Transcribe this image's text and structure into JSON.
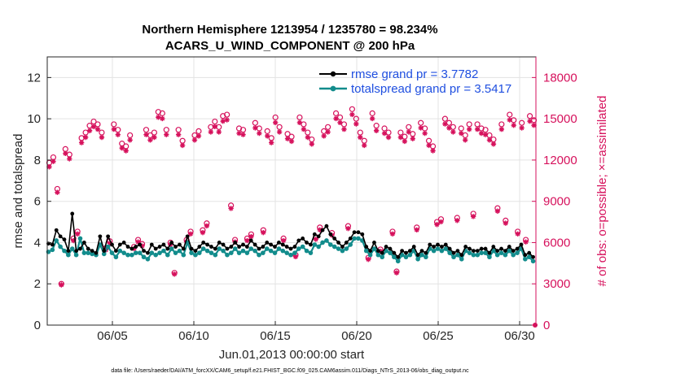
{
  "chart_data": {
    "type": "line",
    "title_line1": "Northern Hemisphere 1213954 / 1235780 = 98.234%",
    "title_line2": "ACARS_U_WIND_COMPONENT @ 200 hPa",
    "xlabel": "Jun.01,2013 00:00:00 start",
    "ylabel_left": "rmse and totalspread",
    "ylabel_right": "# of obs: o=possible; ×=assimilated",
    "footer": "data file: /Users/raeder/DAI/ATM_forcXX/CAM6_setup/f.e21.FHIST_BGC.f09_025.CAM6assim.011/Diags_NTrS_2013-06/obs_diag_output.nc",
    "x_range_days": [
      1,
      31
    ],
    "ylim_left": [
      0,
      13
    ],
    "ylim_right": [
      0,
      19500
    ],
    "x_ticks": [
      {
        "day": 5,
        "label": "06/05"
      },
      {
        "day": 10,
        "label": "06/10"
      },
      {
        "day": 15,
        "label": "06/15"
      },
      {
        "day": 20,
        "label": "06/20"
      },
      {
        "day": 25,
        "label": "06/25"
      },
      {
        "day": 30,
        "label": "06/30"
      }
    ],
    "y_ticks_left": [
      {
        "value": 0,
        "label": "0"
      },
      {
        "value": 2,
        "label": "2"
      },
      {
        "value": 4,
        "label": "4"
      },
      {
        "value": 6,
        "label": "6"
      },
      {
        "value": 8,
        "label": "8"
      },
      {
        "value": 10,
        "label": "10"
      },
      {
        "value": 12,
        "label": "12"
      }
    ],
    "y_ticks_right": [
      {
        "value": 0,
        "label": "0"
      },
      {
        "value": 3000,
        "label": "3000"
      },
      {
        "value": 6000,
        "label": "6000"
      },
      {
        "value": 9000,
        "label": "9000"
      },
      {
        "value": 12000,
        "label": "12000"
      },
      {
        "value": 15000,
        "label": "15000"
      },
      {
        "value": 18000,
        "label": "18000"
      }
    ],
    "colors": {
      "rmse": "#000000",
      "spread": "#128c8c",
      "obs": "#d6115c",
      "grid": "#e3e3e3",
      "legend_text": "#1f4fe0"
    },
    "series": [
      {
        "name": "rmse",
        "legend": "rmse grand pr = 3.7782",
        "values": [
          3.95,
          3.9,
          4.6,
          4.3,
          4.15,
          3.6,
          5.4,
          3.6,
          3.7,
          4.0,
          3.7,
          3.6,
          3.5,
          4.3,
          3.6,
          4.3,
          3.9,
          3.6,
          3.9,
          4.0,
          3.8,
          3.7,
          3.8,
          3.9,
          3.6,
          3.5,
          3.9,
          3.7,
          3.8,
          3.9,
          3.7,
          4.0,
          3.8,
          3.9,
          3.7,
          4.3,
          3.7,
          3.6,
          3.8,
          4.0,
          3.9,
          3.8,
          3.7,
          4.0,
          3.9,
          3.7,
          3.8,
          4.0,
          3.8,
          3.9,
          3.8,
          4.1,
          3.9,
          3.7,
          3.8,
          4.0,
          3.9,
          3.8,
          4.0,
          3.9,
          3.8,
          3.7,
          3.8,
          4.1,
          4.2,
          4.0,
          3.9,
          4.4,
          4.3,
          4.6,
          4.8,
          4.4,
          4.2,
          4.0,
          3.8,
          4.0,
          4.2,
          4.5,
          4.5,
          4.4,
          3.8,
          3.6,
          4.0,
          3.6,
          3.5,
          3.8,
          3.7,
          3.5,
          3.3,
          3.6,
          3.5,
          3.6,
          3.8,
          3.4,
          3.6,
          3.5,
          3.9,
          3.8,
          3.9,
          3.8,
          3.9,
          3.7,
          3.5,
          3.6,
          3.4,
          3.8,
          3.7,
          3.6,
          3.6,
          3.7,
          3.7,
          3.5,
          3.8,
          3.6,
          3.7,
          3.6,
          3.8,
          3.6,
          3.7,
          3.9,
          3.4,
          3.5,
          3.3
        ]
      },
      {
        "name": "totalspread",
        "legend": "totalspread grand pr = 3.5417",
        "values": [
          3.55,
          3.65,
          4.1,
          3.8,
          3.6,
          3.4,
          3.7,
          3.4,
          4.2,
          3.5,
          3.5,
          3.45,
          3.4,
          3.9,
          3.45,
          3.8,
          3.5,
          3.3,
          3.6,
          3.5,
          3.4,
          3.4,
          3.5,
          3.5,
          3.3,
          3.2,
          3.5,
          3.4,
          3.5,
          3.6,
          3.4,
          3.7,
          3.5,
          3.6,
          3.4,
          4.0,
          3.5,
          3.4,
          3.5,
          3.7,
          3.6,
          3.5,
          3.4,
          3.7,
          3.6,
          3.4,
          3.5,
          3.7,
          3.5,
          3.6,
          3.5,
          3.7,
          3.6,
          3.4,
          3.5,
          3.7,
          3.6,
          3.5,
          3.7,
          3.6,
          3.5,
          3.4,
          3.5,
          3.7,
          3.8,
          3.6,
          3.5,
          3.9,
          3.8,
          4.0,
          4.1,
          3.9,
          3.8,
          3.7,
          3.6,
          3.7,
          3.9,
          4.2,
          4.2,
          4.1,
          3.6,
          3.4,
          3.7,
          3.4,
          3.3,
          3.6,
          3.5,
          3.3,
          3.1,
          3.4,
          3.3,
          3.4,
          3.6,
          3.2,
          3.4,
          3.3,
          3.7,
          3.6,
          3.7,
          3.6,
          3.7,
          3.5,
          3.3,
          3.4,
          3.2,
          3.6,
          3.5,
          3.4,
          3.4,
          3.5,
          3.5,
          3.3,
          3.6,
          3.4,
          3.5,
          3.4,
          3.6,
          3.4,
          3.5,
          3.7,
          3.2,
          3.3,
          3.1
        ]
      }
    ],
    "obs_possible": [
      11800,
      12200,
      9900,
      3000,
      12800,
      12400,
      6300,
      6800,
      13600,
      14000,
      14500,
      14800,
      14600,
      14000,
      5600,
      6100,
      14600,
      14200,
      13200,
      13000,
      13800,
      5700,
      6200,
      5900,
      14200,
      13800,
      14000,
      15500,
      15400,
      14200,
      6000,
      3800,
      14200,
      13400,
      6200,
      6800,
      13800,
      14100,
      6900,
      7400,
      14400,
      14800,
      14400,
      15200,
      15300,
      8700,
      6200,
      14300,
      14200,
      6300,
      6600,
      14700,
      14300,
      6900,
      14100,
      13600,
      15100,
      14400,
      6300,
      13900,
      13700,
      5100,
      15100,
      14600,
      14000,
      13500,
      6400,
      7100,
      14100,
      14400,
      6700,
      15400,
      15100,
      14600,
      7200,
      15700,
      15000,
      14000,
      13400,
      4900,
      15400,
      14500,
      5500,
      14300,
      14000,
      6800,
      3900,
      14000,
      13700,
      14400,
      13900,
      7100,
      14700,
      14300,
      13400,
      13000,
      7500,
      7700,
      15000,
      14700,
      14400,
      7800,
      14300,
      13800,
      14600,
      8100,
      14600,
      14300,
      14200,
      13800,
      13500,
      8500,
      14600,
      7600,
      15300,
      14900,
      6800,
      14700,
      6200,
      15200,
      14900
    ]
  }
}
